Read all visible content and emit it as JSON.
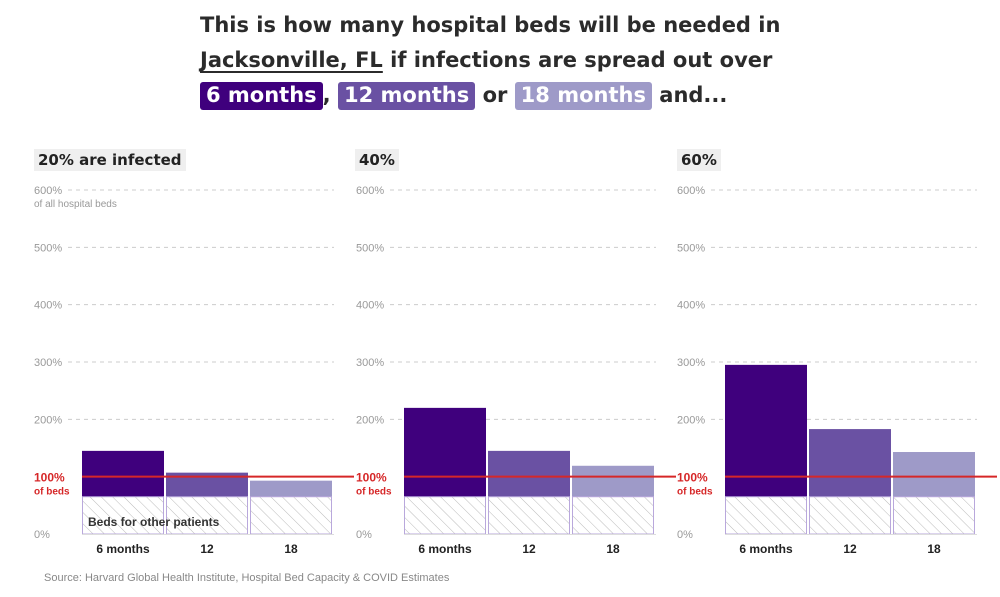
{
  "headline": {
    "line1": "This is how many hospital beds will be needed in",
    "city": "Jacksonville, FL",
    "line2_rest": " if infections are spread out over",
    "pill_6": "6 months",
    "sep1": ", ",
    "pill_12": "12 months",
    "sep2": " or ",
    "pill_18": "18 months",
    "tail": " and..."
  },
  "colors": {
    "m6": "#3f007d",
    "m12": "#6a51a3",
    "m18": "#9e9ac8",
    "redline": "#d62728",
    "grid": "#cccccc",
    "hatch": "#bbbbbb",
    "hatch_border": "#b9a8dc"
  },
  "chart_data": [
    {
      "type": "bar",
      "title": "20% are infected",
      "categories": [
        "6 months",
        "12",
        "18"
      ],
      "values": [
        145,
        107,
        93
      ],
      "other_patients_beds": 65,
      "other_patients_label": "Beds for other patients",
      "ylim": [
        0,
        600
      ],
      "yticks": [
        "0%",
        "100%",
        "200%",
        "300%",
        "400%",
        "500%",
        "600%"
      ],
      "ytick_top_note": "of all hospital beds",
      "reference_line": {
        "value": 100,
        "label": "100%",
        "sublabel": "of beds"
      },
      "grid": true
    },
    {
      "type": "bar",
      "title": "40%",
      "categories": [
        "6 months",
        "12",
        "18"
      ],
      "values": [
        220,
        145,
        119
      ],
      "other_patients_beds": 65,
      "ylim": [
        0,
        600
      ],
      "yticks": [
        "0%",
        "100%",
        "200%",
        "300%",
        "400%",
        "500%",
        "600%"
      ],
      "reference_line": {
        "value": 100,
        "label": "100%",
        "sublabel": "of beds"
      },
      "grid": true
    },
    {
      "type": "bar",
      "title": "60%",
      "categories": [
        "6 months",
        "12",
        "18"
      ],
      "values": [
        295,
        183,
        143
      ],
      "other_patients_beds": 65,
      "ylim": [
        0,
        600
      ],
      "yticks": [
        "0%",
        "100%",
        "200%",
        "300%",
        "400%",
        "500%",
        "600%"
      ],
      "reference_line": {
        "value": 100,
        "label": "100%",
        "sublabel": "of beds"
      },
      "grid": true
    }
  ],
  "source": "Source: Harvard Global Health Institute, Hospital Bed Capacity & COVID Estimates"
}
